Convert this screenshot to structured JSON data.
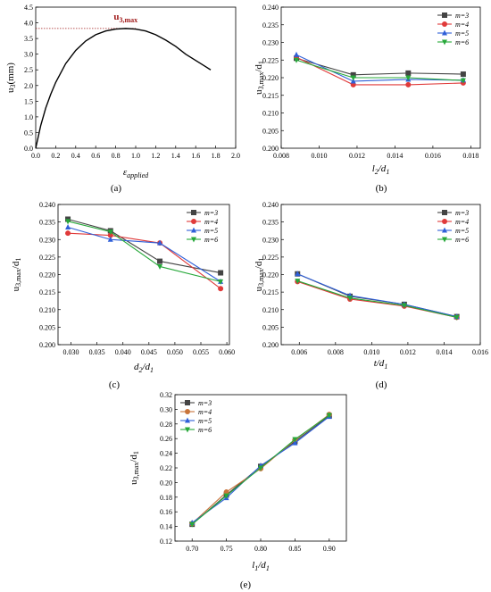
{
  "chart_data": [
    {
      "id": "a",
      "type": "line",
      "panel_label": "(a)",
      "xlabel_main": "ε",
      "xlabel_sub": "applied",
      "ylabel": "u3(mm)",
      "ylabel_main": "u",
      "ylabel_sub": "3",
      "ylabel_suffix": "(mm)",
      "xlim": [
        0,
        2.0
      ],
      "ylim": [
        0,
        4.5
      ],
      "xticks": [
        0,
        0.2,
        0.4,
        0.6,
        0.8,
        1.0,
        1.2,
        1.4,
        1.6,
        1.8,
        2.0
      ],
      "xtick_labels": [
        "0.0",
        "0.2",
        "0.4",
        "0.6",
        "0.8",
        "1.0",
        "1.2",
        "1.4",
        "1.6",
        "1.8",
        "2.0"
      ],
      "yticks": [
        0,
        0.5,
        1.0,
        1.5,
        2.0,
        2.5,
        3.0,
        3.5,
        4.0,
        4.5
      ],
      "ytick_labels": [
        "0.0",
        "0.5",
        "1.0",
        "1.5",
        "2.0",
        "2.5",
        "3.0",
        "3.5",
        "4.0",
        "4.5"
      ],
      "series": [
        {
          "color": "#000000",
          "x": [
            0,
            0.05,
            0.1,
            0.15,
            0.2,
            0.3,
            0.4,
            0.5,
            0.6,
            0.7,
            0.8,
            0.9,
            1.0,
            1.1,
            1.2,
            1.3,
            1.4,
            1.5,
            1.6,
            1.7,
            1.75
          ],
          "y": [
            0,
            0.72,
            1.28,
            1.72,
            2.1,
            2.7,
            3.12,
            3.42,
            3.62,
            3.74,
            3.8,
            3.82,
            3.8,
            3.74,
            3.62,
            3.45,
            3.25,
            3.0,
            2.8,
            2.6,
            2.5
          ]
        }
      ],
      "annotation": {
        "text_main": "u",
        "text_sub": "3,max",
        "color": "#a01b1b",
        "y": 3.82,
        "x_from": 0,
        "x_to": 1.0,
        "text_x": 0.78,
        "text_y": 4.1
      }
    },
    {
      "id": "b",
      "type": "line",
      "panel_label": "(b)",
      "xlabel_main": "l",
      "xlabel_sub": "2",
      "xlabel_mid": "/d",
      "xlabel_sub2": "1",
      "ylabel_main": "u",
      "ylabel_sub": "3,max",
      "ylabel_suffix": "/d",
      "ylabel_sub2": "1",
      "xlim": [
        0.008,
        0.0185
      ],
      "ylim": [
        0.2,
        0.24
      ],
      "xticks": [
        0.008,
        0.01,
        0.012,
        0.014,
        0.016,
        0.018
      ],
      "xtick_labels": [
        "0.008",
        "0.010",
        "0.012",
        "0.014",
        "0.016",
        "0.018"
      ],
      "yticks": [
        0.2,
        0.205,
        0.21,
        0.215,
        0.22,
        0.225,
        0.23,
        0.235,
        0.24
      ],
      "ytick_labels": [
        "0.200",
        "0.205",
        "0.210",
        "0.215",
        "0.220",
        "0.225",
        "0.230",
        "0.235",
        "0.240"
      ],
      "legend_position": "top-right",
      "series": [
        {
          "name": "m=3",
          "color": "#444444",
          "marker": "square",
          "x": [
            0.0088,
            0.0118,
            0.0147,
            0.0176
          ],
          "y": [
            0.2255,
            0.2208,
            0.2213,
            0.221
          ]
        },
        {
          "name": "m=4",
          "color": "#e03a3a",
          "marker": "circle",
          "x": [
            0.0088,
            0.0118,
            0.0147,
            0.0176
          ],
          "y": [
            0.2258,
            0.218,
            0.218,
            0.2185
          ]
        },
        {
          "name": "m=5",
          "color": "#2f5fd8",
          "marker": "triangle",
          "x": [
            0.0088,
            0.0118,
            0.0147,
            0.0176
          ],
          "y": [
            0.2265,
            0.219,
            0.2195,
            0.2193
          ]
        },
        {
          "name": "m=6",
          "color": "#27a83a",
          "marker": "triangle-down",
          "x": [
            0.0088,
            0.0118,
            0.0147,
            0.0176
          ],
          "y": [
            0.225,
            0.22,
            0.22,
            0.2192
          ]
        }
      ]
    },
    {
      "id": "c",
      "type": "line",
      "panel_label": "(c)",
      "xlabel_main": "d",
      "xlabel_sub": "2",
      "xlabel_mid": "/d",
      "xlabel_sub2": "1",
      "ylabel_main": "u",
      "ylabel_sub": "3,max",
      "ylabel_suffix": "/d",
      "ylabel_sub2": "1",
      "xlim": [
        0.0275,
        0.0605
      ],
      "ylim": [
        0.2,
        0.24
      ],
      "xticks": [
        0.03,
        0.035,
        0.04,
        0.045,
        0.05,
        0.055,
        0.06
      ],
      "xtick_labels": [
        "0.030",
        "0.035",
        "0.040",
        "0.045",
        "0.050",
        "0.055",
        "0.060"
      ],
      "yticks": [
        0.2,
        0.205,
        0.21,
        0.215,
        0.22,
        0.225,
        0.23,
        0.235,
        0.24
      ],
      "ytick_labels": [
        "0.200",
        "0.205",
        "0.210",
        "0.215",
        "0.220",
        "0.225",
        "0.230",
        "0.235",
        "0.240"
      ],
      "legend_position": "top-right",
      "series": [
        {
          "name": "m=3",
          "color": "#444444",
          "marker": "square",
          "x": [
            0.0294,
            0.0376,
            0.0471,
            0.0588
          ],
          "y": [
            0.2358,
            0.2325,
            0.2238,
            0.2205
          ]
        },
        {
          "name": "m=4",
          "color": "#e03a3a",
          "marker": "circle",
          "x": [
            0.0294,
            0.0376,
            0.0471,
            0.0588
          ],
          "y": [
            0.2318,
            0.2312,
            0.229,
            0.216
          ]
        },
        {
          "name": "m=5",
          "color": "#2f5fd8",
          "marker": "triangle",
          "x": [
            0.0294,
            0.0376,
            0.0471,
            0.0588
          ],
          "y": [
            0.2335,
            0.23,
            0.229,
            0.218
          ]
        },
        {
          "name": "m=6",
          "color": "#27a83a",
          "marker": "triangle-down",
          "x": [
            0.0294,
            0.0376,
            0.0471,
            0.0588
          ],
          "y": [
            0.2352,
            0.2322,
            0.2223,
            0.218
          ]
        }
      ]
    },
    {
      "id": "d",
      "type": "line",
      "panel_label": "(d)",
      "xlabel_main": "t",
      "xlabel_sub": "",
      "xlabel_mid": "/d",
      "xlabel_sub2": "1",
      "ylabel_main": "u",
      "ylabel_sub": "3,max",
      "ylabel_suffix": "/d",
      "ylabel_sub2": "1",
      "xlim": [
        0.005,
        0.016
      ],
      "ylim": [
        0.2,
        0.24
      ],
      "xticks": [
        0.006,
        0.008,
        0.01,
        0.012,
        0.014,
        0.016
      ],
      "xtick_labels": [
        "0.006",
        "0.008",
        "0.010",
        "0.012",
        "0.014",
        "0.016"
      ],
      "yticks": [
        0.2,
        0.205,
        0.21,
        0.215,
        0.22,
        0.225,
        0.23,
        0.235,
        0.24
      ],
      "ytick_labels": [
        "0.200",
        "0.205",
        "0.210",
        "0.215",
        "0.220",
        "0.225",
        "0.230",
        "0.235",
        "0.240"
      ],
      "legend_position": "top-right",
      "series": [
        {
          "name": "m=3",
          "color": "#444444",
          "marker": "square",
          "x": [
            0.0059,
            0.0088,
            0.0118,
            0.0147
          ],
          "y": [
            0.2202,
            0.2138,
            0.2115,
            0.208
          ]
        },
        {
          "name": "m=4",
          "color": "#e03a3a",
          "marker": "circle",
          "x": [
            0.0059,
            0.0088,
            0.0118,
            0.0147
          ],
          "y": [
            0.218,
            0.213,
            0.211,
            0.2078
          ]
        },
        {
          "name": "m=5",
          "color": "#2f5fd8",
          "marker": "triangle",
          "x": [
            0.0059,
            0.0088,
            0.0118,
            0.0147
          ],
          "y": [
            0.2202,
            0.214,
            0.2115,
            0.208
          ]
        },
        {
          "name": "m=6",
          "color": "#27a83a",
          "marker": "triangle-down",
          "x": [
            0.0059,
            0.0088,
            0.0118,
            0.0147
          ],
          "y": [
            0.2182,
            0.2133,
            0.2112,
            0.2078
          ]
        }
      ]
    },
    {
      "id": "e",
      "type": "line",
      "panel_label": "(e)",
      "xlabel_main": "l",
      "xlabel_sub": "1",
      "xlabel_mid": "/d",
      "xlabel_sub2": "1",
      "ylabel_main": "u",
      "ylabel_sub": "3,max",
      "ylabel_suffix": "/d",
      "ylabel_sub2": "1",
      "xlim": [
        0.675,
        0.925
      ],
      "ylim": [
        0.12,
        0.32
      ],
      "xticks": [
        0.7,
        0.75,
        0.8,
        0.85,
        0.9
      ],
      "xtick_labels": [
        "0.70",
        "0.75",
        "0.80",
        "0.85",
        "0.90"
      ],
      "yticks": [
        0.12,
        0.14,
        0.16,
        0.18,
        0.2,
        0.22,
        0.24,
        0.26,
        0.28,
        0.3,
        0.32
      ],
      "ytick_labels": [
        "0.12",
        "0.14",
        "0.16",
        "0.18",
        "0.20",
        "0.22",
        "0.24",
        "0.26",
        "0.28",
        "0.30",
        "0.32"
      ],
      "legend_position": "top-left",
      "series": [
        {
          "name": "m=3",
          "color": "#444444",
          "marker": "square",
          "x": [
            0.7,
            0.75,
            0.8,
            0.85,
            0.9
          ],
          "y": [
            0.143,
            0.183,
            0.222,
            0.256,
            0.291
          ]
        },
        {
          "name": "m=4",
          "color": "#c8743a",
          "marker": "circle",
          "x": [
            0.7,
            0.75,
            0.8,
            0.85,
            0.9
          ],
          "y": [
            0.144,
            0.187,
            0.219,
            0.258,
            0.293
          ]
        },
        {
          "name": "m=5",
          "color": "#2f5fd8",
          "marker": "triangle",
          "x": [
            0.7,
            0.75,
            0.8,
            0.85,
            0.9
          ],
          "y": [
            0.145,
            0.179,
            0.223,
            0.254,
            0.29
          ]
        },
        {
          "name": "m=6",
          "color": "#27a83a",
          "marker": "triangle-down",
          "x": [
            0.7,
            0.75,
            0.8,
            0.85,
            0.9
          ],
          "y": [
            0.143,
            0.182,
            0.22,
            0.259,
            0.292
          ]
        }
      ]
    }
  ]
}
